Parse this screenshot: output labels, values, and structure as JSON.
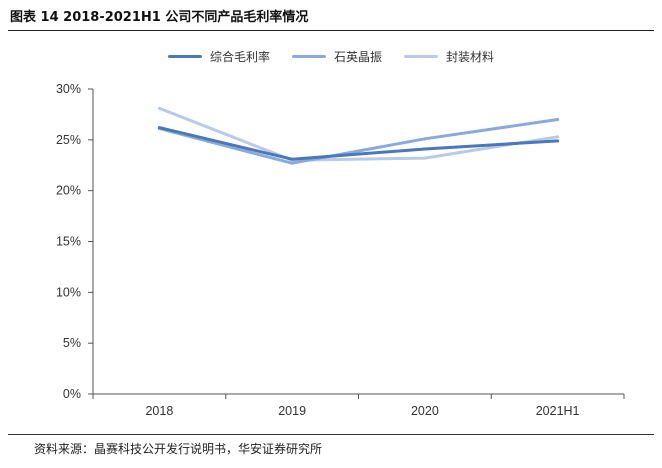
{
  "header": {
    "title": "图表 14 2018-2021H1 公司不同产品毛利率情况"
  },
  "footer": {
    "source": "资料来源：晶赛科技公开发行说明书，华安证券研究所"
  },
  "chart_data": {
    "type": "line",
    "title": "",
    "xlabel": "",
    "ylabel": "",
    "categories": [
      "2018",
      "2019",
      "2020",
      "2021H1"
    ],
    "ylim": [
      0,
      30
    ],
    "yticks": [
      "0%",
      "5%",
      "10%",
      "15%",
      "20%",
      "25%",
      "30%"
    ],
    "grid": false,
    "legend_position": "top",
    "series": [
      {
        "name": "综合毛利率",
        "color": "#4a78b8",
        "values": [
          26.2,
          23.1,
          24.1,
          24.9
        ]
      },
      {
        "name": "石英晶振",
        "color": "#8aa9dc",
        "values": [
          26.1,
          22.7,
          25.1,
          27.0
        ]
      },
      {
        "name": "封装材料",
        "color": "#b9c9e8",
        "values": [
          28.1,
          23.0,
          23.2,
          25.3
        ]
      }
    ]
  }
}
